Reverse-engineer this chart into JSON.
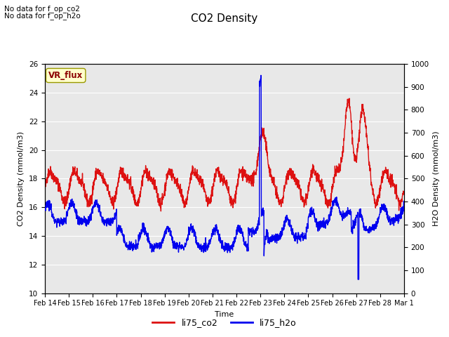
{
  "title": "CO2 Density",
  "xlabel": "Time",
  "ylabel_left": "CO2 Density (mmol/m3)",
  "ylabel_right": "H2O Density (mmol/m3)",
  "top_left_text_line1": "No data for f_op_co2",
  "top_left_text_line2": "No data for f_op_h2o",
  "legend_label1": "li75_co2",
  "legend_label2": "li75_h2o",
  "tag_text": "VR_flux",
  "tag_color": "#FFFFCC",
  "tag_text_color": "#8B0000",
  "ylim_left": [
    10,
    26
  ],
  "ylim_right": [
    0,
    1000
  ],
  "yticks_left": [
    10,
    12,
    14,
    16,
    18,
    20,
    22,
    24,
    26
  ],
  "yticks_right": [
    0,
    100,
    200,
    300,
    400,
    500,
    600,
    700,
    800,
    900,
    1000
  ],
  "color_co2": "#DD1111",
  "color_h2o": "#0000EE",
  "bg_color": "#E8E8E8",
  "line_width": 1.0,
  "num_points": 2000
}
